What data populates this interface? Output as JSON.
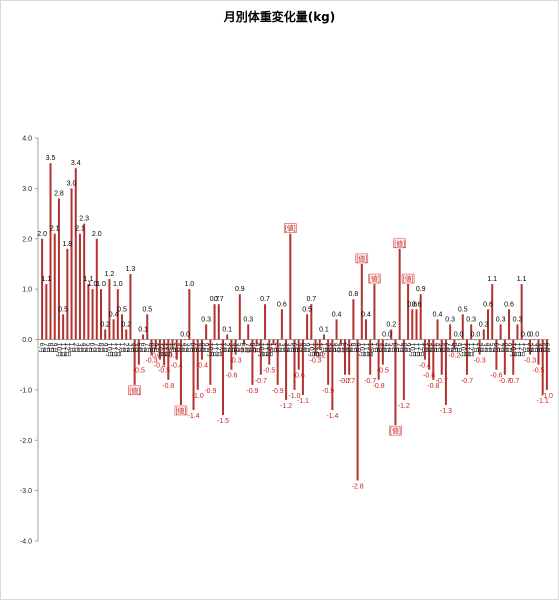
{
  "title": "月別体重変化量(kg)",
  "chart_data": {
    "type": "bar",
    "title": "月別体重変化量(kg)",
    "xlabel": "",
    "ylabel": "",
    "ylim": [
      -4.0,
      4.0
    ],
    "yticks": [
      "4.0",
      "3.0",
      "2.0",
      "1.0",
      "0.0",
      "-1.0",
      "-2.0",
      "-3.0",
      "-4.0"
    ],
    "grid": false,
    "legend": "none",
    "bar_color": "#b2322f",
    "label_color_positive": "#000000",
    "label_color_negative": "#d02020",
    "placeholder_label": "[値]",
    "placeholder_indices": [
      22,
      33,
      59,
      76,
      79,
      84,
      85,
      87
    ],
    "categories": [
      "6月",
      "7月",
      "8月",
      "9月",
      "10月",
      "11月",
      "12月",
      "1月",
      "2月",
      "3月",
      "4月",
      "5月",
      "6月",
      "7月",
      "8月",
      "9月",
      "10月",
      "11月",
      "12月",
      "1月",
      "2月",
      "3月",
      "4月",
      "5月",
      "6月",
      "7月",
      "8月",
      "9月",
      "10月",
      "11月",
      "12月",
      "1月",
      "2月",
      "3月",
      "4月",
      "5月",
      "6月",
      "7月",
      "8月",
      "9月",
      "10月",
      "11月",
      "12月",
      "1月",
      "2月",
      "3月",
      "4月",
      "5月",
      "6月",
      "7月",
      "8月",
      "9月",
      "10月",
      "11月",
      "12月",
      "1月",
      "2月",
      "3月",
      "4月",
      "5月",
      "6月",
      "7月",
      "8月",
      "9月",
      "10月",
      "11月",
      "12月",
      "1月",
      "2月",
      "3月",
      "4月",
      "5月",
      "6月",
      "7月",
      "8月",
      "9月",
      "10月",
      "11月",
      "12月",
      "1月",
      "2月",
      "3月",
      "4月",
      "5月",
      "6月",
      "7月",
      "8月",
      "9月",
      "10月",
      "11月",
      "12月",
      "1月",
      "2月",
      "3月",
      "4月",
      "5月",
      "6月",
      "7月",
      "8月",
      "9月",
      "10月",
      "11月",
      "12月",
      "1月",
      "2月",
      "3月",
      "4月",
      "5月",
      "6月",
      "7月",
      "8月",
      "9月",
      "10月",
      "11月",
      "12月",
      "1月",
      "2月",
      "3月",
      "4月",
      "5月",
      "6月"
    ],
    "values": [
      2.0,
      1.1,
      3.5,
      2.1,
      2.8,
      0.5,
      1.8,
      3.0,
      3.4,
      2.1,
      2.3,
      1.1,
      1.0,
      2.0,
      1.0,
      0.2,
      1.2,
      0.4,
      1.0,
      0.5,
      0.2,
      1.3,
      -0.9,
      -0.5,
      0.1,
      0.5,
      -0.3,
      -0.2,
      -0.4,
      -0.5,
      -0.8,
      -0.2,
      -0.4,
      -1.3,
      0.0,
      1.0,
      -1.4,
      -1.0,
      -0.4,
      0.3,
      -0.9,
      0.7,
      0.7,
      -1.5,
      0.1,
      -0.6,
      -0.3,
      0.9,
      -0.1,
      0.3,
      -0.9,
      -0.1,
      -0.7,
      0.7,
      -0.5,
      -0.1,
      -0.9,
      0.6,
      -1.2,
      2.1,
      -1.0,
      -0.6,
      -1.1,
      0.5,
      0.7,
      -0.3,
      -0.2,
      0.1,
      -0.9,
      -1.4,
      0.4,
      -0.1,
      -0.7,
      -0.7,
      0.8,
      -2.8,
      1.5,
      0.4,
      -0.7,
      1.1,
      -0.8,
      -0.5,
      0.0,
      0.2,
      -1.7,
      1.8,
      -1.2,
      1.1,
      0.6,
      0.6,
      0.9,
      -0.4,
      -0.6,
      -0.8,
      0.4,
      -0.7,
      -1.3,
      0.3,
      -0.2,
      0.0,
      0.5,
      -0.7,
      0.3,
      0.0,
      -0.3,
      0.2,
      0.6,
      1.1,
      -0.6,
      0.3,
      -0.7,
      0.6,
      -0.7,
      0.3,
      1.1,
      0.0,
      -0.3,
      0.0,
      -0.5,
      -1.1,
      -1.0
    ]
  }
}
